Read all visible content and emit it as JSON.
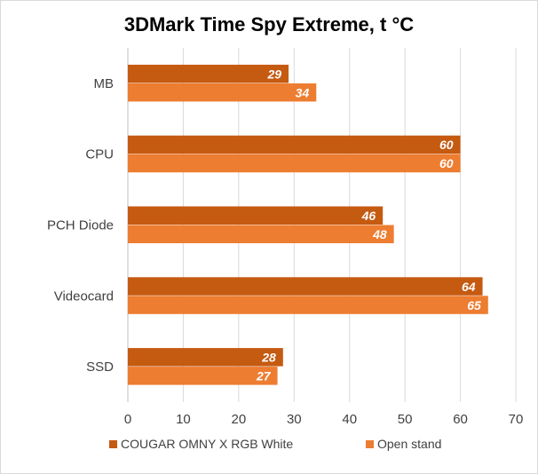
{
  "chart_data": {
    "type": "bar",
    "orientation": "horizontal",
    "title": "3DMark Time Spy Extreme, t °C",
    "xlabel": "",
    "ylabel": "",
    "categories": [
      "MB",
      "CPU",
      "PCH Diode",
      "Videocard",
      "SSD"
    ],
    "series": [
      {
        "name": "COUGAR OMNY X RGB White",
        "values": [
          29,
          60,
          46,
          64,
          28
        ],
        "color": "#C55A11"
      },
      {
        "name": "Open stand",
        "values": [
          34,
          60,
          48,
          65,
          27
        ],
        "color": "#ED7D31"
      }
    ],
    "xlim": [
      0,
      70
    ],
    "xticks": [
      0,
      10,
      20,
      30,
      40,
      50,
      60,
      70
    ],
    "grid": true,
    "legend_position": "bottom",
    "data_labels": true
  }
}
